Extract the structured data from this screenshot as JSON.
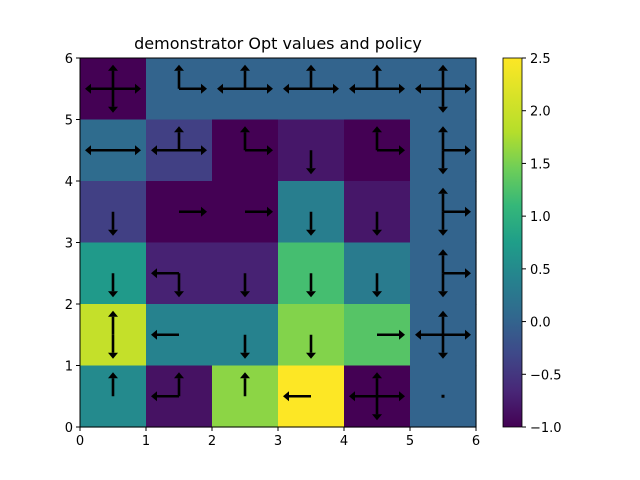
{
  "chart_data": {
    "type": "heatmap",
    "title": "demonstrator Opt values and policy",
    "xlabel": "",
    "ylabel": "",
    "xlim": [
      0,
      6
    ],
    "ylim": [
      0,
      6
    ],
    "x_ticks": [
      "0",
      "1",
      "2",
      "3",
      "4",
      "5",
      "6"
    ],
    "y_ticks": [
      "0",
      "1",
      "2",
      "3",
      "4",
      "5",
      "6"
    ],
    "colormap": "viridis",
    "color_range": [
      -1.0,
      2.5
    ],
    "colorbar_ticks": [
      "2.5",
      "2.0",
      "1.5",
      "1.0",
      "0.5",
      "0.0",
      "−0.5",
      "−1.0"
    ],
    "colorbar_tick_values": [
      2.5,
      2.0,
      1.5,
      1.0,
      0.5,
      0.0,
      -0.5,
      -1.0
    ],
    "grid": false,
    "rows_top_to_bottom": [
      [
        -1.0,
        0.0,
        0.0,
        0.0,
        0.0,
        0.0
      ],
      [
        0.1,
        -0.4,
        -1.0,
        -0.8,
        -1.0,
        0.0
      ],
      [
        -0.4,
        -1.0,
        -1.0,
        0.35,
        -0.8,
        0.0
      ],
      [
        0.7,
        -0.7,
        -0.7,
        1.2,
        0.3,
        0.0
      ],
      [
        1.95,
        0.4,
        0.4,
        1.55,
        1.3,
        0.0
      ],
      [
        0.5,
        -0.85,
        1.6,
        2.5,
        -1.0,
        0.0
      ]
    ],
    "policy_rows_top_to_bottom": [
      [
        [
          "up",
          "down",
          "left",
          "right"
        ],
        [
          "up",
          "right"
        ],
        [
          "up",
          "left",
          "right"
        ],
        [
          "up",
          "left",
          "right"
        ],
        [
          "up",
          "left",
          "right"
        ],
        [
          "up",
          "down",
          "left",
          "right"
        ]
      ],
      [
        [
          "left",
          "right"
        ],
        [
          "up",
          "left",
          "right"
        ],
        [
          "up",
          "right"
        ],
        [
          "down"
        ],
        [
          "up",
          "right"
        ],
        [
          "up",
          "down",
          "right"
        ]
      ],
      [
        [
          "down"
        ],
        [
          "right"
        ],
        [
          "right"
        ],
        [
          "down"
        ],
        [
          "down"
        ],
        [
          "up",
          "down",
          "right"
        ]
      ],
      [
        [
          "down"
        ],
        [
          "left",
          "down"
        ],
        [
          "down"
        ],
        [
          "down"
        ],
        [
          "down"
        ],
        [
          "up",
          "down",
          "right"
        ]
      ],
      [
        [
          "up",
          "down"
        ],
        [
          "left"
        ],
        [
          "down"
        ],
        [
          "down"
        ],
        [
          "right"
        ],
        [
          "up",
          "down",
          "left",
          "right"
        ]
      ],
      [
        [
          "up"
        ],
        [
          "up",
          "left"
        ],
        [
          "up"
        ],
        [
          "left"
        ],
        [
          "up",
          "down",
          "left",
          "right"
        ],
        []
      ]
    ]
  }
}
